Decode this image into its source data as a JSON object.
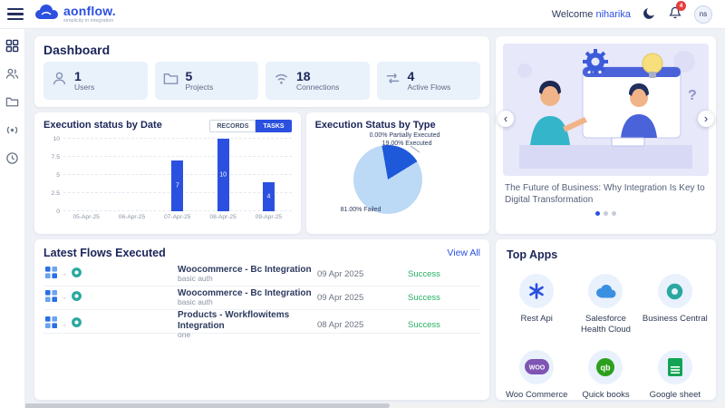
{
  "colors": {
    "primary": "#2b50e0",
    "success": "#27ae60",
    "notification_badge": "#e53e3e"
  },
  "header": {
    "brand": "aonflow.",
    "tagline": "simplicity in integration",
    "welcome_prefix": "Welcome",
    "username": "niharika",
    "notification_count": "4",
    "avatar_initials": "ns"
  },
  "dashboard": {
    "title": "Dashboard",
    "stats": [
      {
        "value": "1",
        "label": "Users"
      },
      {
        "value": "5",
        "label": "Projects"
      },
      {
        "value": "18",
        "label": "Connections"
      },
      {
        "value": "4",
        "label": "Active Flows"
      }
    ]
  },
  "chart_data": [
    {
      "type": "bar",
      "title": "Execution status by Date",
      "categories": [
        "05-Apr-25",
        "06-Apr-25",
        "07-Apr-25",
        "08-Apr-25",
        "09-Apr-25"
      ],
      "values": [
        0,
        0,
        7,
        10,
        4
      ],
      "ylim": [
        0,
        10
      ],
      "yticks": [
        0,
        2.5,
        5,
        7.5,
        10
      ],
      "bar_color": "#2b50e0",
      "grid": "dashed-horizontal",
      "toggle_buttons": [
        "RECORDS",
        "TASKS"
      ],
      "active_toggle": "TASKS"
    },
    {
      "type": "pie",
      "title": "Execution Status by Type",
      "slices": [
        {
          "label": "Partially Executed",
          "value": 0,
          "display": "0.00% Partially Executed",
          "color": "#9ec5f2"
        },
        {
          "label": "Executed",
          "value": 19,
          "display": "19.00% Executed",
          "color": "#1d59d8"
        },
        {
          "label": "Failed",
          "value": 81,
          "display": "81.00% Failed",
          "color": "#bcd9f5"
        }
      ]
    }
  ],
  "latest_flows": {
    "title": "Latest Flows Executed",
    "view_all_label": "View All",
    "rows": [
      {
        "name": "Woocommerce - Bc Integration",
        "subtitle": "basic auth",
        "date": "09 Apr 2025",
        "status": "Success"
      },
      {
        "name": "Woocommerce - Bc Integration",
        "subtitle": "basic auth",
        "date": "09 Apr 2025",
        "status": "Success"
      },
      {
        "name": "Products - Workflowitems Integration",
        "subtitle": "one",
        "date": "08 Apr 2025",
        "status": "Success"
      }
    ]
  },
  "carousel": {
    "caption": "The Future of Business: Why Integration Is Key to Digital Transformation",
    "dots": 3,
    "active_dot": 0
  },
  "top_apps": {
    "title": "Top Apps",
    "apps": [
      {
        "label": "Rest Api"
      },
      {
        "label": "Salesforce Health Cloud"
      },
      {
        "label": "Business Central"
      },
      {
        "label": "Woo Commerce"
      },
      {
        "label": "Quick books"
      },
      {
        "label": "Google sheet"
      }
    ]
  }
}
